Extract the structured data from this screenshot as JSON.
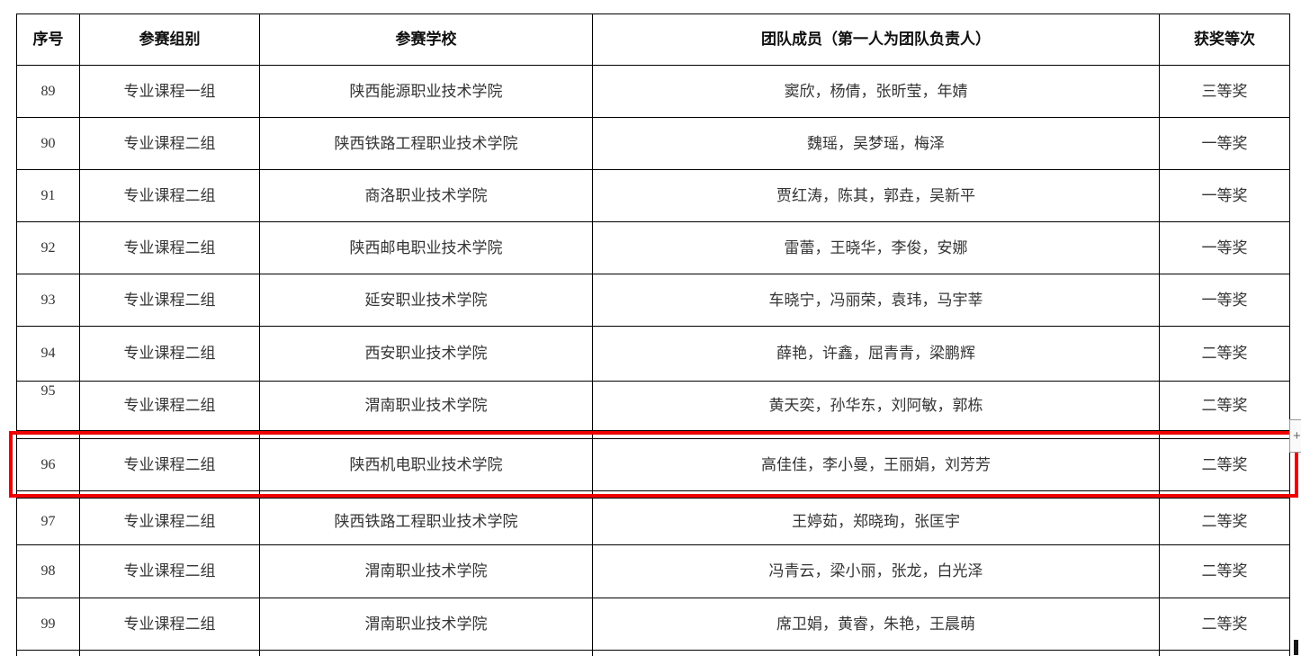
{
  "table": {
    "headers": {
      "no": "序号",
      "group": "参赛组别",
      "school": "参赛学校",
      "members": "团队成员（第一人为团队负责人）",
      "award": "获奖等次"
    },
    "rows": [
      {
        "no": "89",
        "group": "专业课程一组",
        "school": "陕西能源职业技术学院",
        "members": "窦欣，杨倩，张昕莹，年婧",
        "award": "三等奖"
      },
      {
        "no": "90",
        "group": "专业课程二组",
        "school": "陕西铁路工程职业技术学院",
        "members": "魏瑶，吴梦瑶，梅泽",
        "award": "一等奖"
      },
      {
        "no": "91",
        "group": "专业课程二组",
        "school": "商洛职业技术学院",
        "members": "贾红涛，陈其，郭垚，吴新平",
        "award": "一等奖"
      },
      {
        "no": "92",
        "group": "专业课程二组",
        "school": "陕西邮电职业技术学院",
        "members": "雷蕾，王晓华，李俊，安娜",
        "award": "一等奖"
      },
      {
        "no": "93",
        "group": "专业课程二组",
        "school": "延安职业技术学院",
        "members": "车晓宁，冯丽荣，袁玮，马宇莘",
        "award": "一等奖"
      },
      {
        "no": "94",
        "group": "专业课程二组",
        "school": "西安职业技术学院",
        "members": "薛艳，许鑫，屈青青，梁鹏辉",
        "award": "二等奖"
      },
      {
        "no": "95",
        "group": "专业课程二组",
        "school": "渭南职业技术学院",
        "members": "黄天奕，孙华东，刘阿敏，郭栋",
        "award": "二等奖"
      },
      {
        "no": "96",
        "group": "专业课程二组",
        "school": "陕西机电职业技术学院",
        "members": "高佳佳，李小曼，王丽娟，刘芳芳",
        "award": "二等奖"
      },
      {
        "no": "97",
        "group": "专业课程二组",
        "school": "陕西铁路工程职业技术学院",
        "members": "王婷茹，郑晓珣，张匡宇",
        "award": "二等奖"
      },
      {
        "no": "98",
        "group": "专业课程二组",
        "school": "渭南职业技术学院",
        "members": "冯青云，梁小丽，张龙，白光泽",
        "award": "二等奖"
      },
      {
        "no": "99",
        "group": "专业课程二组",
        "school": "渭南职业技术学院",
        "members": "席卫娟，黄睿，朱艳，王晨萌",
        "award": "二等奖"
      }
    ]
  },
  "annotation": {
    "highlighted_row_no": "96",
    "highlight_color": "#ee0000"
  },
  "ui": {
    "plus_button_label": "+"
  },
  "colors": {
    "table_border": "#000000",
    "body_text": "#343434",
    "header_text": "#101010",
    "background": "#ffffff"
  }
}
